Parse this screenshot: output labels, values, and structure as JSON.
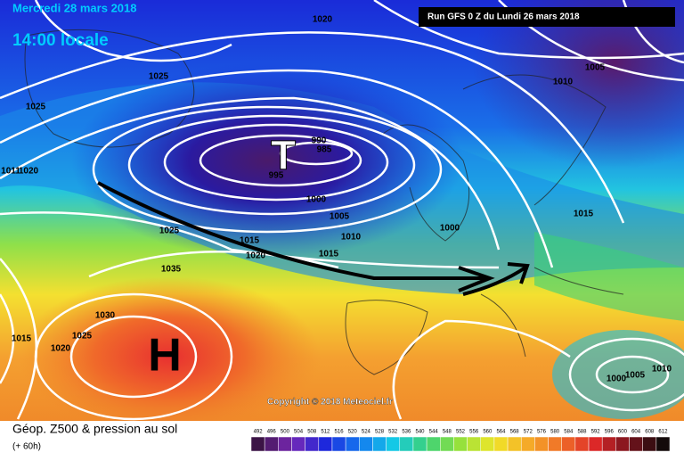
{
  "header": {
    "date": "Mercredi 28 mars 2018",
    "time": "14:00 locale",
    "run": "Run GFS 0 Z du Lundi 26 mars 2018"
  },
  "map": {
    "low": "T",
    "high": "H",
    "copyright": "Copyright © 2018 Meteociel.fr",
    "isobar_labels": [
      "1020",
      "1025",
      "1025",
      "1005",
      "1010",
      "1011",
      "1020",
      "990",
      "985",
      "995",
      "1000",
      "1005",
      "1010",
      "1015",
      "1020",
      "1025",
      "1015",
      "1035",
      "1000",
      "1015",
      "1030",
      "1025",
      "1020",
      "1015",
      "1000",
      "1005",
      "1010"
    ]
  },
  "footer": {
    "title": "Géop. Z500 & pression au sol",
    "lead": "(+ 60h)",
    "scale": [
      "492",
      "496",
      "500",
      "504",
      "508",
      "512",
      "516",
      "520",
      "524",
      "528",
      "532",
      "536",
      "540",
      "544",
      "548",
      "552",
      "556",
      "560",
      "564",
      "568",
      "572",
      "576",
      "580",
      "584",
      "588",
      "592",
      "596",
      "600",
      "604",
      "608",
      "612"
    ]
  }
}
